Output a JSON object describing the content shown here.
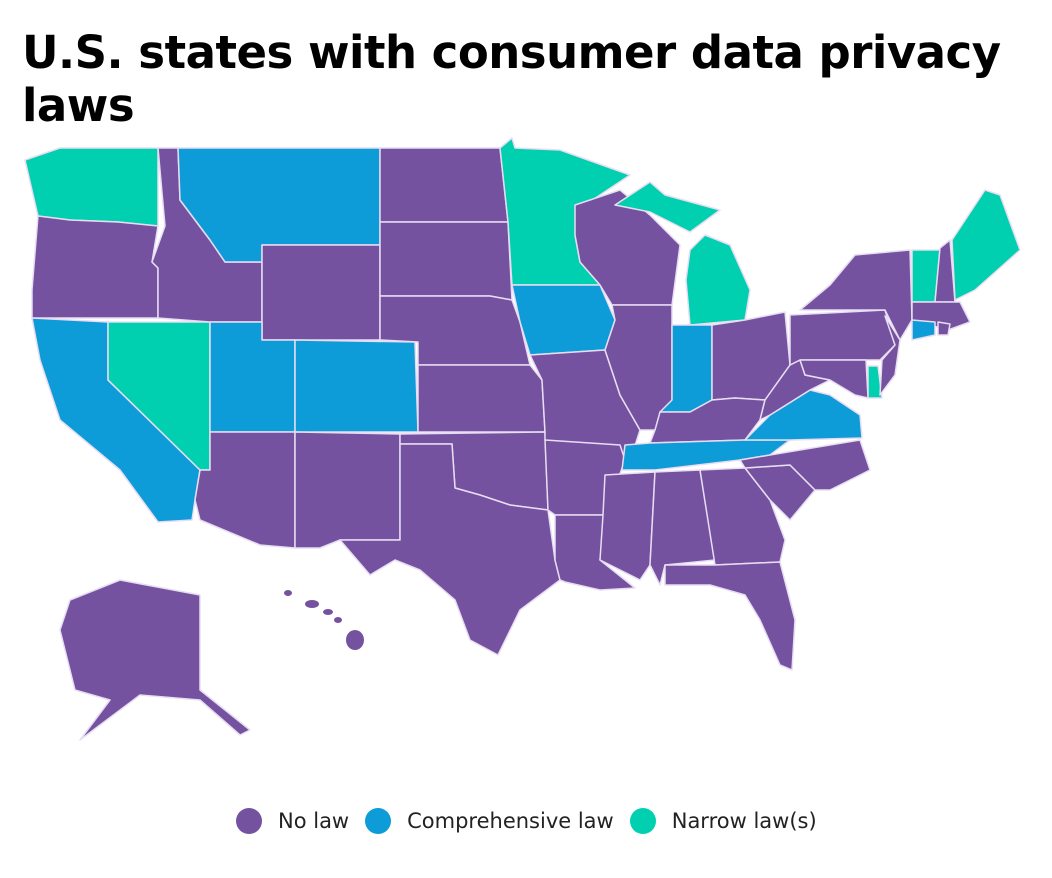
{
  "title": "U.S. states with consumer data privacy laws",
  "colors": {
    "no_law": "#7452A0",
    "comprehensive": "#0E9CD9",
    "narrow": "#00CFB0",
    "border": "#E8DDF2"
  },
  "legend": [
    {
      "key": "no_law",
      "label": "No law"
    },
    {
      "key": "comprehensive",
      "label": "Comprehensive law"
    },
    {
      "key": "narrow",
      "label": "Narrow law(s)"
    }
  ],
  "state_status": {
    "WA": "narrow",
    "OR": "no_law",
    "CA": "comprehensive",
    "NV": "narrow",
    "ID": "no_law",
    "MT": "comprehensive",
    "WY": "no_law",
    "UT": "comprehensive",
    "CO": "comprehensive",
    "AZ": "no_law",
    "NM": "no_law",
    "ND": "no_law",
    "SD": "no_law",
    "NE": "no_law",
    "KS": "no_law",
    "OK": "no_law",
    "TX": "no_law",
    "MN": "narrow",
    "IA": "comprehensive",
    "MO": "no_law",
    "AR": "no_law",
    "LA": "no_law",
    "WI": "no_law",
    "IL": "no_law",
    "MI": "narrow",
    "IN": "comprehensive",
    "OH": "no_law",
    "KY": "no_law",
    "TN": "comprehensive",
    "MS": "no_law",
    "AL": "no_law",
    "GA": "no_law",
    "FL": "no_law",
    "SC": "no_law",
    "NC": "no_law",
    "VA": "comprehensive",
    "WV": "no_law",
    "PA": "no_law",
    "NY": "no_law",
    "MD": "no_law",
    "DE": "narrow",
    "NJ": "no_law",
    "VT": "narrow",
    "NH": "no_law",
    "ME": "narrow",
    "MA": "no_law",
    "CT": "comprehensive",
    "RI": "no_law",
    "AK": "no_law",
    "HI": "no_law"
  }
}
